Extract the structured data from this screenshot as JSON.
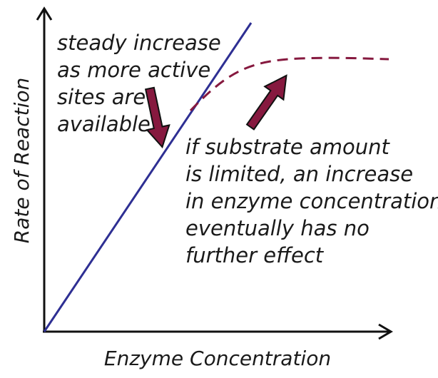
{
  "axes": {
    "x_label": "Enzyme Concentration",
    "y_label": "Rate of Reaction"
  },
  "annotations": {
    "left_note": [
      "steady increase",
      "as more active",
      "sites are",
      "available"
    ],
    "right_note": [
      "if substrate amount",
      "is limited, an increase",
      "in enzyme concentration",
      "eventually has no",
      "further effect"
    ]
  },
  "colors": {
    "axis": "#111111",
    "linear_line": "#2e2f93",
    "plateau_line": "#86193f",
    "arrow_fill": "#86193f",
    "arrow_outline": "#111111",
    "text": "#1a1a1a"
  },
  "icons": {
    "annotation_arrows": "down-arrow-icon"
  }
}
